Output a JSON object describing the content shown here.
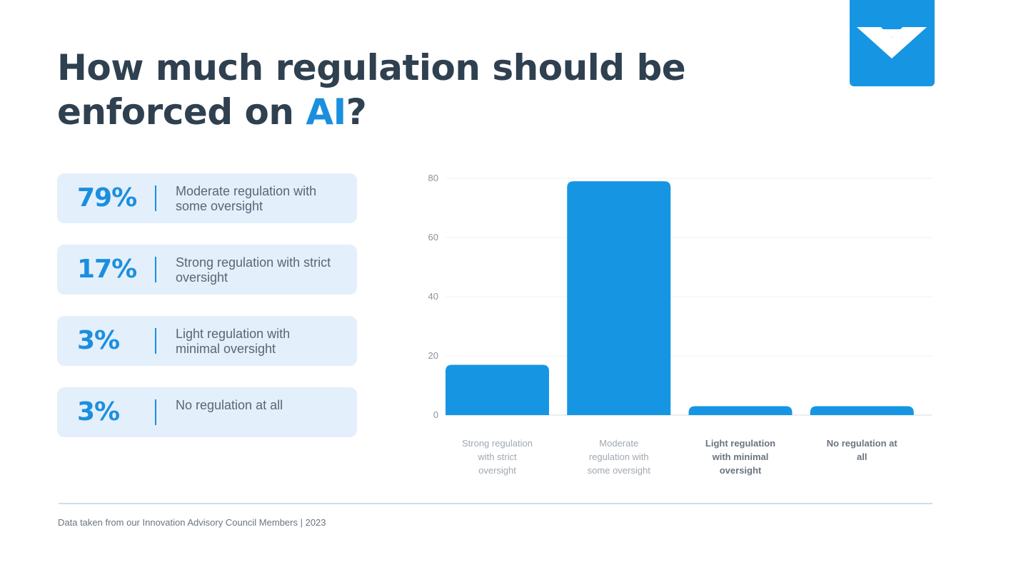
{
  "title": {
    "main": "How much regulation should be enforced on ",
    "accent": "AI",
    "end": "?"
  },
  "logo_icon": "chevron-v-logo-icon",
  "colors": {
    "title": "#2f4050",
    "accent": "#1b8fde",
    "bar": "#1696e2",
    "card_bg": "#e4effc"
  },
  "cards": [
    {
      "pct": "79%",
      "desc": "Moderate regulation with some oversight"
    },
    {
      "pct": "17%",
      "desc": "Strong regulation with strict oversight"
    },
    {
      "pct": "3%",
      "desc": "Light regulation with minimal oversight"
    },
    {
      "pct": "3%",
      "desc": "No regulation at all"
    }
  ],
  "chart_data": {
    "type": "bar",
    "categories": [
      "Strong regulation with strict oversight",
      "Moderate regulation with some oversight",
      "Light regulation with minimal oversight",
      "No regulation at all"
    ],
    "category_lines": [
      [
        "Strong regulation",
        "with strict",
        "oversight"
      ],
      [
        "Moderate",
        "regulation with",
        "some oversight"
      ],
      [
        "Light regulation",
        "with minimal",
        "oversight"
      ],
      [
        "No regulation at",
        "all"
      ]
    ],
    "values": [
      17,
      79,
      3,
      3
    ],
    "ylim": [
      0,
      80
    ],
    "yticks": [
      0,
      20,
      40,
      60,
      80
    ],
    "grid": true,
    "xlabel": "",
    "ylabel": ""
  },
  "footnote": "Data taken from our Innovation Advisory Council Members | 2023"
}
